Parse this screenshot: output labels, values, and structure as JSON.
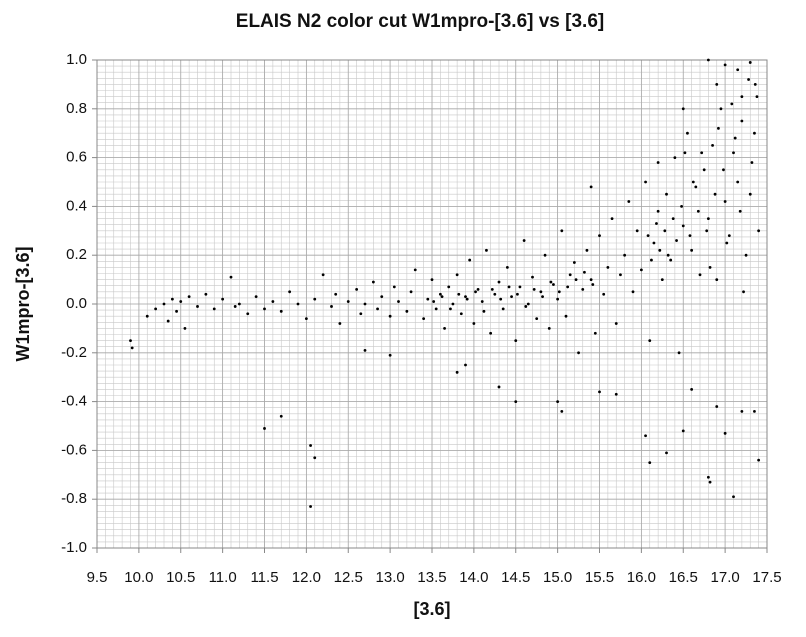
{
  "chart_data": {
    "type": "scatter",
    "title": "ELAIS N2 color cut W1mpro-[3.6] vs [3.6]",
    "x_label": "[3.6]",
    "y_label": "W1mpro-[3.6]",
    "color": "#000000",
    "grid": true,
    "minor_grid": {
      "x": 0.1,
      "y": 0.025
    },
    "xlim": [
      9.5,
      17.5
    ],
    "xticks": [
      9.5,
      {
        "value": 10,
        "label": "10.0"
      },
      10.5,
      {
        "value": 11,
        "label": "11.0"
      },
      11.5,
      {
        "value": 12,
        "label": "12.0"
      },
      12.5,
      {
        "value": 13,
        "label": "13.0"
      },
      13.5,
      {
        "value": 14,
        "label": "14.0"
      },
      14.5,
      {
        "value": 15,
        "label": "15.0"
      },
      15.5,
      {
        "value": 16,
        "label": "16.0"
      },
      16.5,
      {
        "value": 17,
        "label": "17.0"
      },
      17.5
    ],
    "ylim": [
      -1,
      1
    ],
    "yticks": [
      {
        "value": -1,
        "label": "-1.0"
      },
      -0.8,
      -0.6,
      -0.4,
      -0.2,
      {
        "value": 0,
        "label": "0.0"
      },
      0.2,
      0.4,
      0.6,
      0.8,
      {
        "value": 1,
        "label": "1.0"
      }
    ],
    "x": [
      10.1,
      10.2,
      10.3,
      10.35,
      10.4,
      10.45,
      10.5,
      10.55,
      10.6,
      10.7,
      10.8,
      10.9,
      11.0,
      11.1,
      11.15,
      11.2,
      11.3,
      11.4,
      11.5,
      11.6,
      11.7,
      11.8,
      11.9,
      12.0,
      12.1,
      12.2,
      12.3,
      12.35,
      12.4,
      12.5,
      12.6,
      12.65,
      12.7,
      12.8,
      12.85,
      12.9,
      13.0,
      13.05,
      13.1,
      13.2,
      13.25,
      13.3,
      13.4,
      13.45,
      13.5,
      13.55,
      13.6,
      13.65,
      13.7,
      13.75,
      13.8,
      13.85,
      13.9,
      13.95,
      14.0,
      14.05,
      14.1,
      14.15,
      14.2,
      14.25,
      14.3,
      14.35,
      14.4,
      14.45,
      14.5,
      14.55,
      14.6,
      14.65,
      14.7,
      14.75,
      14.8,
      14.85,
      14.9,
      14.95,
      15.0,
      15.05,
      15.1,
      15.15,
      15.2,
      15.25,
      15.3,
      15.35,
      15.4,
      15.45,
      15.5,
      15.55,
      15.6,
      15.65,
      15.7,
      15.75,
      15.8,
      15.85,
      15.9,
      15.95,
      16.0,
      16.05,
      16.1,
      16.15,
      16.2,
      16.25,
      16.3,
      16.35,
      16.4,
      16.45,
      16.5,
      16.55,
      16.6,
      16.65,
      16.7,
      16.75,
      16.8,
      16.85,
      16.9,
      16.95,
      17.0,
      17.05,
      17.1,
      17.15,
      17.2,
      17.25,
      17.3,
      17.35,
      17.4,
      17.38,
      17.32,
      17.28,
      17.22,
      17.18,
      17.12,
      17.08,
      17.02,
      16.98,
      16.92,
      16.88,
      16.82,
      16.78,
      16.72,
      16.68,
      16.62,
      16.58,
      16.52,
      16.48,
      16.42,
      16.38,
      16.32,
      16.28,
      16.22,
      16.18,
      16.12,
      16.08,
      14.52,
      14.62,
      14.72,
      14.82,
      14.92,
      15.02,
      15.12,
      15.22,
      15.32,
      15.42,
      13.52,
      13.62,
      13.72,
      13.82,
      13.92,
      14.02,
      14.12,
      14.22,
      14.32,
      14.42,
      9.9,
      9.92,
      11.5,
      11.7,
      12.05,
      12.1,
      12.05,
      16.8,
      16.82,
      17.1,
      17.4,
      16.1,
      16.05,
      15.0,
      15.05,
      14.5,
      16.3,
      16.5,
      17.0,
      12.7,
      13.0,
      13.8,
      13.9,
      14.3,
      15.5,
      15.7,
      16.6,
      16.9,
      17.2,
      17.35,
      15.4,
      16.8,
      17.0,
      17.3,
      16.9,
      17.2,
      16.5,
      16.2,
      17.15,
      17.36
    ],
    "values": [
      -0.05,
      -0.02,
      0.0,
      -0.07,
      0.02,
      -0.03,
      0.01,
      -0.1,
      0.03,
      -0.01,
      0.04,
      -0.02,
      0.02,
      0.11,
      -0.01,
      0.0,
      -0.04,
      0.03,
      -0.02,
      0.01,
      -0.03,
      0.05,
      0.0,
      -0.06,
      0.02,
      0.12,
      -0.01,
      0.04,
      -0.08,
      0.01,
      0.06,
      -0.04,
      0.0,
      0.09,
      -0.02,
      0.03,
      -0.05,
      0.07,
      0.01,
      -0.03,
      0.05,
      0.14,
      -0.06,
      0.02,
      0.1,
      -0.02,
      0.04,
      -0.1,
      0.07,
      0.0,
      0.12,
      -0.04,
      0.03,
      0.18,
      -0.08,
      0.06,
      0.01,
      0.22,
      -0.12,
      0.04,
      0.09,
      -0.02,
      0.15,
      0.03,
      -0.15,
      0.07,
      0.26,
      0.0,
      0.11,
      -0.06,
      0.05,
      0.2,
      -0.1,
      0.08,
      0.02,
      0.3,
      -0.05,
      0.12,
      0.17,
      -0.2,
      0.06,
      0.22,
      0.1,
      -0.12,
      0.28,
      0.04,
      0.15,
      0.35,
      -0.08,
      0.12,
      0.2,
      0.42,
      0.05,
      0.3,
      0.14,
      0.5,
      -0.15,
      0.25,
      0.38,
      0.1,
      0.45,
      0.18,
      0.6,
      -0.2,
      0.32,
      0.7,
      0.22,
      0.48,
      0.12,
      0.55,
      0.35,
      0.65,
      0.1,
      0.8,
      0.42,
      0.28,
      0.62,
      0.5,
      0.75,
      0.2,
      0.45,
      0.7,
      0.3,
      0.85,
      0.58,
      0.92,
      0.05,
      0.38,
      0.68,
      0.82,
      0.25,
      0.55,
      0.72,
      0.45,
      0.15,
      0.3,
      0.62,
      0.38,
      0.5,
      0.28,
      0.62,
      0.4,
      0.26,
      0.35,
      0.2,
      0.3,
      0.22,
      0.33,
      0.18,
      0.28,
      0.04,
      -0.01,
      0.06,
      0.03,
      0.09,
      0.05,
      0.07,
      0.1,
      0.13,
      0.08,
      0.01,
      0.03,
      -0.02,
      0.04,
      0.02,
      0.05,
      -0.03,
      0.06,
      0.02,
      0.07,
      -0.15,
      -0.18,
      -0.51,
      -0.46,
      -0.58,
      -0.63,
      -0.83,
      -0.71,
      -0.73,
      -0.79,
      -0.64,
      -0.65,
      -0.54,
      -0.4,
      -0.44,
      -0.4,
      -0.61,
      -0.52,
      -0.53,
      -0.19,
      -0.21,
      -0.28,
      -0.25,
      -0.34,
      -0.36,
      -0.37,
      -0.35,
      -0.42,
      -0.44,
      -0.44,
      0.48,
      1.0,
      0.98,
      0.99,
      0.9,
      0.85,
      0.8,
      0.58,
      0.96,
      0.9
    ]
  }
}
